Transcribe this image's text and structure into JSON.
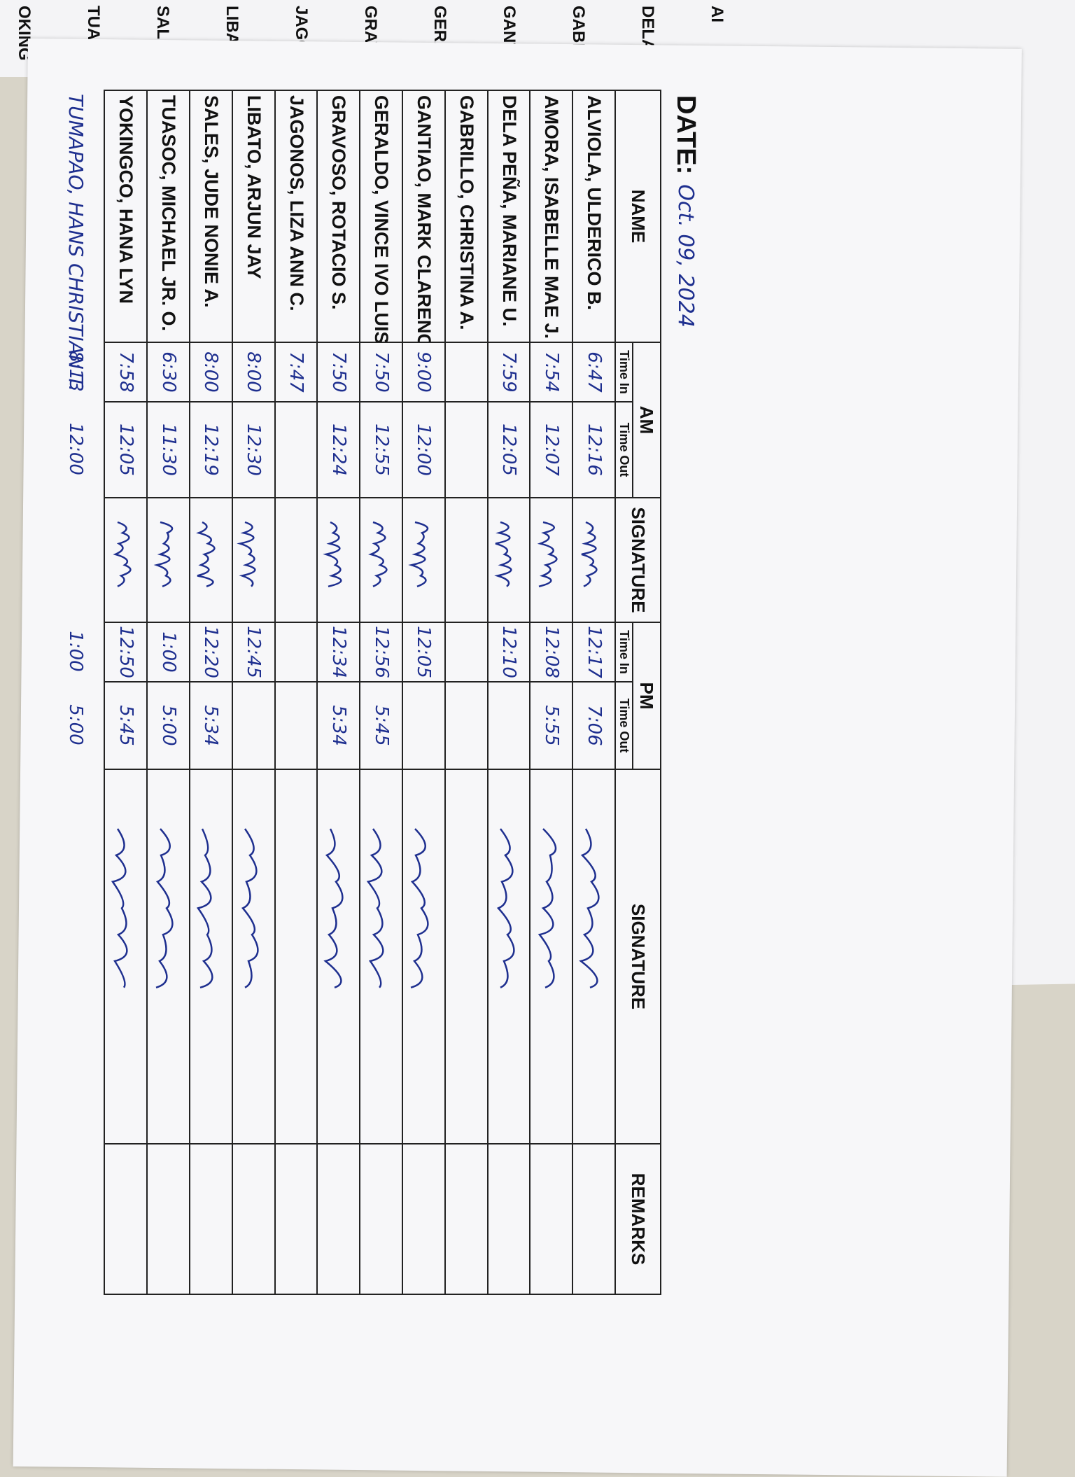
{
  "date_label": "DATE:",
  "date": "Oct. 09, 2024",
  "table": {
    "headers": {
      "name": "NAME",
      "am": "AM",
      "pm": "PM",
      "signature": "SIGNATURE",
      "remarks": "REMARKS",
      "time_in": "Time In",
      "time_out": "Time Out"
    },
    "rows": [
      {
        "name": "ALVIOLA, ULDERICO B.",
        "am_in": "6:47",
        "am_out": "12:16",
        "pm_in": "12:17",
        "pm_out": "7:06"
      },
      {
        "name": "AMORA, ISABELLE MAE J.",
        "am_in": "7:54",
        "am_out": "12:07",
        "pm_in": "12:08",
        "pm_out": "5:55"
      },
      {
        "name": "DELA PEÑA, MARIANE U.",
        "am_in": "7:59",
        "am_out": "12:05",
        "pm_in": "12:10",
        "pm_out": null
      },
      {
        "name": "GABRILLO, CHRISTINA A.",
        "am_in": null,
        "am_out": null,
        "pm_in": null,
        "pm_out": null
      },
      {
        "name": "GANTIAO, MARK CLARENCE",
        "am_in": "9:00",
        "am_out": "12:00",
        "pm_in": "12:05",
        "pm_out": null
      },
      {
        "name": "GERALDO, VINCE IVO LUIS",
        "am_in": "7:50",
        "am_out": "12:55",
        "pm_in": "12:56",
        "pm_out": "5:45"
      },
      {
        "name": "GRAVOSO, ROTACIO S.",
        "am_in": "7:50",
        "am_out": "12:24",
        "pm_in": "12:34",
        "pm_out": "5:34"
      },
      {
        "name": "JAGONOS, LIZA ANN C.",
        "am_in": "7:47",
        "am_out": null,
        "pm_in": null,
        "pm_out": null
      },
      {
        "name": "LIBATO, ARJUN JAY",
        "am_in": "8:00",
        "am_out": "12:30",
        "pm_in": "12:45",
        "pm_out": null
      },
      {
        "name": "SALES, JUDE NONIE A.",
        "am_in": "8:00",
        "am_out": "12:19",
        "pm_in": "12:20",
        "pm_out": "5:34"
      },
      {
        "name": "TUASOC, MICHAEL JR. O.",
        "am_in": "6:30",
        "am_out": "11:30",
        "pm_in": "1:00",
        "pm_out": "5:00"
      },
      {
        "name": "YOKINGCO, HANA LYN",
        "am_in": "7:58",
        "am_out": "12:05",
        "pm_in": "12:50",
        "pm_out": "5:45"
      }
    ]
  },
  "handwritten_row": {
    "name": "TUMAPAO, HANS CHRISTIAN T.",
    "am_in": "8:13",
    "am_out": "12:00",
    "pm_in": "1:00",
    "pm_out": "5:00"
  },
  "back_sheet": {
    "headers": [
      "AM",
      "SIGNATURE",
      "PM",
      "Time In",
      "Time Out",
      "SIGNATURE",
      "REMARKS"
    ],
    "names": [
      "AI",
      "DELA F",
      "GABRII",
      "GANTIA",
      "GERAL",
      "GRAVO",
      "JAGONO",
      "LIBATO,",
      "SALES,",
      "TUASOC",
      "OKING"
    ]
  }
}
